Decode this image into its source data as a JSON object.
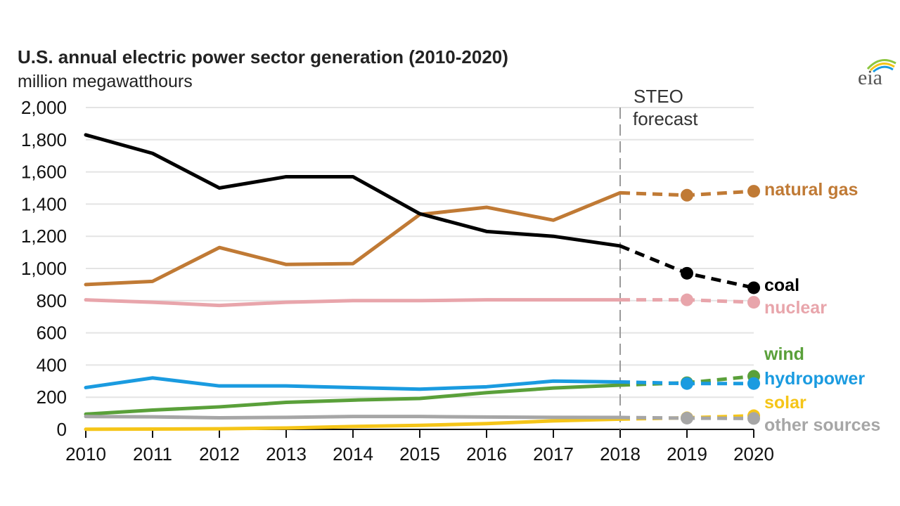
{
  "chart_data": {
    "type": "line",
    "title": "U.S. annual electric power sector generation (2010-2020)",
    "ylabel": "million megawatthours",
    "x": [
      2010,
      2011,
      2012,
      2013,
      2014,
      2015,
      2016,
      2017,
      2018,
      2019,
      2020
    ],
    "ylim": [
      0,
      2000
    ],
    "y_ticks": [
      "0",
      "200",
      "400",
      "600",
      "800",
      "1,000",
      "1,200",
      "1,400",
      "1,600",
      "1,800",
      "2,000"
    ],
    "y_tick_values": [
      0,
      200,
      400,
      600,
      800,
      1000,
      1200,
      1400,
      1600,
      1800,
      2000
    ],
    "grid": true,
    "forecast_start": 2018,
    "forecast_annotation": [
      "STEO",
      "forecast"
    ],
    "series": [
      {
        "name": "natural gas",
        "color": "#c07a35",
        "values": [
          900,
          920,
          1130,
          1025,
          1030,
          1335,
          1380,
          1300,
          1470,
          1455,
          1480
        ]
      },
      {
        "name": "coal",
        "color": "#000000",
        "values": [
          1830,
          1715,
          1500,
          1570,
          1570,
          1340,
          1230,
          1200,
          1140,
          970,
          880
        ]
      },
      {
        "name": "nuclear",
        "color": "#e8a5ab",
        "values": [
          805,
          790,
          770,
          790,
          800,
          800,
          805,
          805,
          805,
          805,
          790
        ]
      },
      {
        "name": "wind",
        "color": "#5aa03a",
        "values": [
          95,
          120,
          140,
          168,
          182,
          192,
          228,
          257,
          275,
          290,
          330
        ]
      },
      {
        "name": "hydropower",
        "color": "#1a9be0",
        "values": [
          260,
          320,
          270,
          270,
          260,
          250,
          265,
          300,
          295,
          285,
          285
        ]
      },
      {
        "name": "solar",
        "color": "#f5c518",
        "values": [
          1,
          2,
          4,
          9,
          18,
          25,
          36,
          53,
          64,
          72,
          85
        ]
      },
      {
        "name": "other sources",
        "color": "#a6a6a6",
        "values": [
          80,
          78,
          72,
          75,
          80,
          80,
          77,
          75,
          74,
          70,
          68
        ]
      }
    ]
  },
  "logo_text": "eia"
}
